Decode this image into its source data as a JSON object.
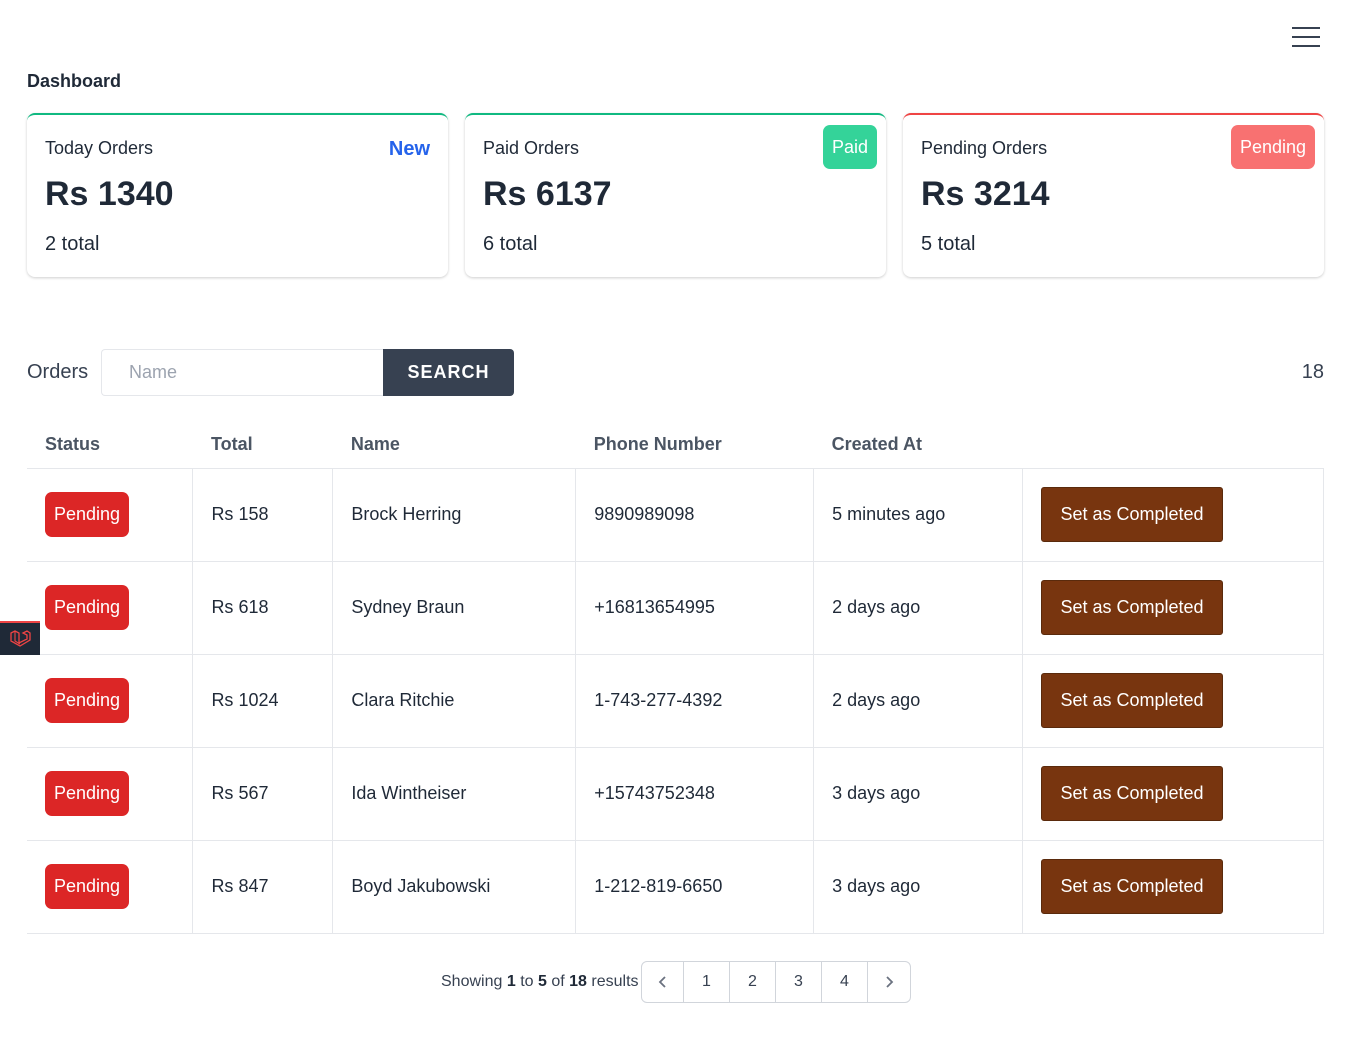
{
  "header": {
    "title": "Dashboard"
  },
  "cards": [
    {
      "label": "Today Orders",
      "amount": "Rs 1340",
      "total": "2 total",
      "badge": "New"
    },
    {
      "label": "Paid Orders",
      "amount": "Rs 6137",
      "total": "6 total",
      "badge": "Paid"
    },
    {
      "label": "Pending Orders",
      "amount": "Rs 3214",
      "total": "5 total",
      "badge": "Pending"
    }
  ],
  "orders": {
    "label": "Orders",
    "search_placeholder": "Name",
    "search_button": "SEARCH",
    "count": "18",
    "columns": [
      "Status",
      "Total",
      "Name",
      "Phone Number",
      "Created At"
    ],
    "rows": [
      {
        "status": "Pending",
        "total": "Rs 158",
        "name": "Brock Herring",
        "phone": "9890989098",
        "created": "5 minutes ago",
        "action": "Set as Completed"
      },
      {
        "status": "Pending",
        "total": "Rs 618",
        "name": "Sydney Braun",
        "phone": "+16813654995",
        "created": "2 days ago",
        "action": "Set as Completed"
      },
      {
        "status": "Pending",
        "total": "Rs 1024",
        "name": "Clara Ritchie",
        "phone": "1-743-277-4392",
        "created": "2 days ago",
        "action": "Set as Completed"
      },
      {
        "status": "Pending",
        "total": "Rs 567",
        "name": "Ida Wintheiser",
        "phone": "+15743752348",
        "created": "3 days ago",
        "action": "Set as Completed"
      },
      {
        "status": "Pending",
        "total": "Rs 847",
        "name": "Boyd Jakubowski",
        "phone": "1-212-819-6650",
        "created": "3 days ago",
        "action": "Set as Completed"
      }
    ]
  },
  "pagination": {
    "showing": "Showing",
    "from": "1",
    "to_word": "to",
    "to": "5",
    "of_word": "of",
    "total": "18",
    "results_word": "results",
    "pages": [
      "1",
      "2",
      "3",
      "4"
    ]
  },
  "icons": {
    "menu": "hamburger-menu-icon",
    "prev": "chevron-left-icon",
    "next": "chevron-right-icon",
    "devtool": "laravel-logo-icon"
  },
  "colors": {
    "card_accent_green": "#10b981",
    "card_accent_red": "#ef4444",
    "new_badge": "#2563eb",
    "paid_badge": "#34d399",
    "pending_badge": "#f87171",
    "status_pending": "#dc2626",
    "complete_button": "#78350f",
    "search_button": "#374151"
  }
}
